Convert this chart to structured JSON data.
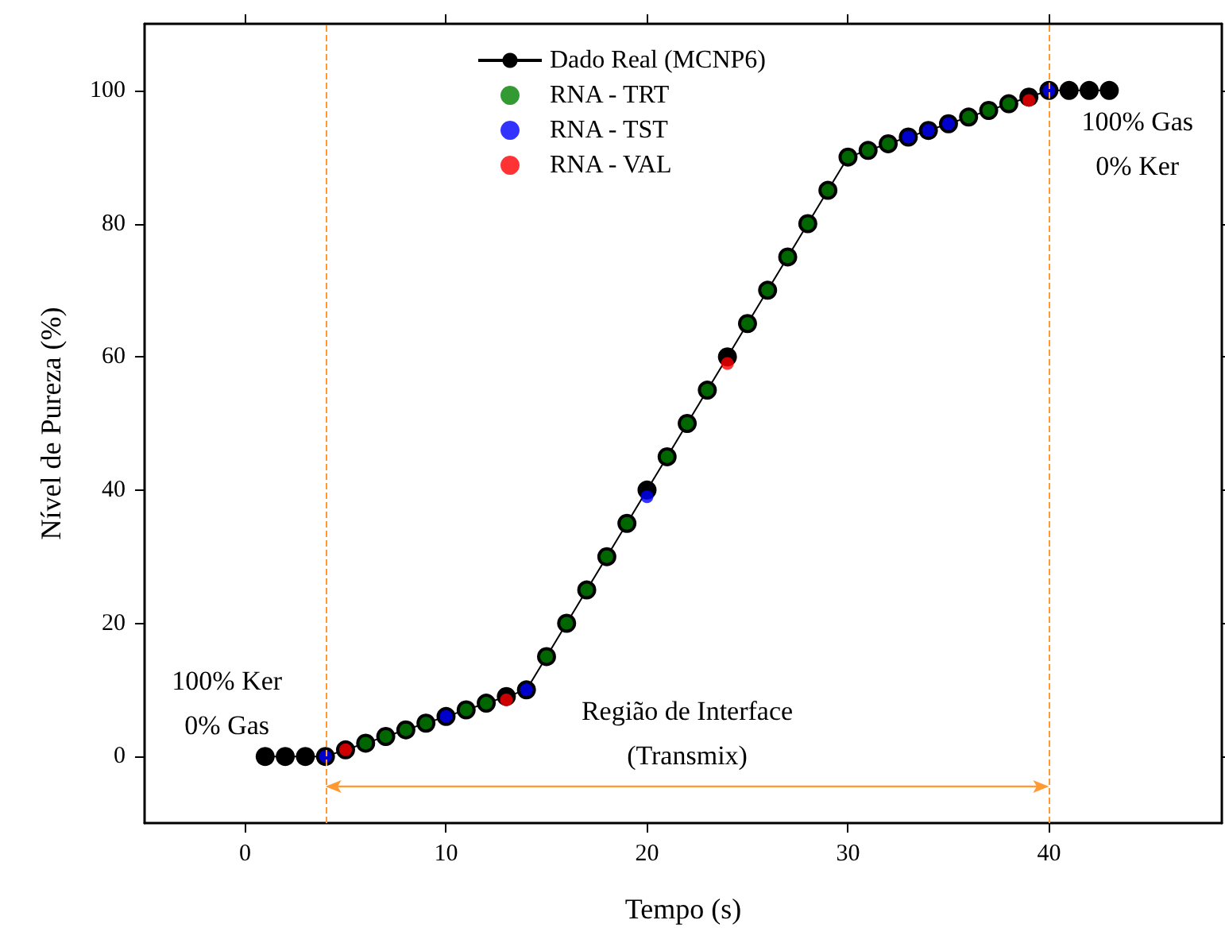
{
  "chart_data": {
    "type": "line",
    "xlabel": "Tempo (s)",
    "ylabel": "Nível de Pureza (%)",
    "xlim": [
      -5,
      48.6
    ],
    "xticks": [
      0,
      10,
      20,
      30,
      40
    ],
    "ylim": [
      -10,
      110
    ],
    "yticks": [
      0,
      20,
      40,
      60,
      80,
      100
    ],
    "grid": false,
    "legend": "top",
    "marker": "circle",
    "series": [
      {
        "name": "Dado Real (MCNP6)",
        "color": "#000000",
        "x": [
          1,
          2,
          3,
          4,
          5,
          6,
          7,
          8,
          9,
          10,
          11,
          12,
          13,
          14,
          15,
          16,
          17,
          18,
          19,
          20,
          21,
          22,
          23,
          24,
          25,
          26,
          27,
          28,
          29,
          30,
          31,
          32,
          33,
          34,
          35,
          36,
          37,
          38,
          39,
          40,
          41,
          42,
          43
        ],
        "values": [
          0,
          0,
          0,
          0,
          1,
          2,
          3,
          4,
          5,
          6,
          7,
          8,
          9,
          10,
          15,
          20,
          25,
          30,
          35,
          40,
          45,
          50,
          55,
          60,
          65,
          70,
          75,
          80,
          85,
          90,
          91,
          92,
          93,
          94,
          95,
          96,
          97,
          98,
          99,
          100,
          100,
          100,
          100
        ]
      },
      {
        "name": "RNA - TRT",
        "type": "scatter",
        "color": "#007f00",
        "x": [
          6,
          7,
          8,
          9,
          11,
          12,
          15,
          16,
          17,
          18,
          19,
          21,
          22,
          23,
          25,
          26,
          27,
          28,
          29,
          30,
          31,
          32,
          36,
          37,
          38
        ],
        "values": [
          2,
          3,
          4,
          5,
          7,
          8,
          15,
          20,
          25,
          30,
          35,
          45,
          50,
          55,
          65,
          70,
          75,
          80,
          85,
          90,
          91,
          92,
          96,
          97,
          98
        ]
      },
      {
        "name": "RNA - TST",
        "type": "scatter",
        "color": "#0000ff",
        "x": [
          4,
          10,
          14,
          20,
          33,
          34,
          35,
          40
        ],
        "values": [
          0,
          6,
          10,
          39,
          93,
          94,
          95,
          100
        ]
      },
      {
        "name": "RNA - VAL",
        "type": "scatter",
        "color": "#ff0000",
        "x": [
          5,
          13,
          24,
          39
        ],
        "values": [
          1,
          8.5,
          59,
          98.5
        ]
      }
    ],
    "ref_lines": [
      {
        "axis": "x",
        "value": 4,
        "color": "#ff9933",
        "line_style": "dashed"
      },
      {
        "axis": "x",
        "value": 40,
        "color": "#ff9933",
        "line_style": "dashed"
      }
    ],
    "annotations": [
      "100% Ker\n0% Gas",
      "100% Gas\n0% Ker",
      "Região de Interface\n(Transmix)"
    ]
  }
}
